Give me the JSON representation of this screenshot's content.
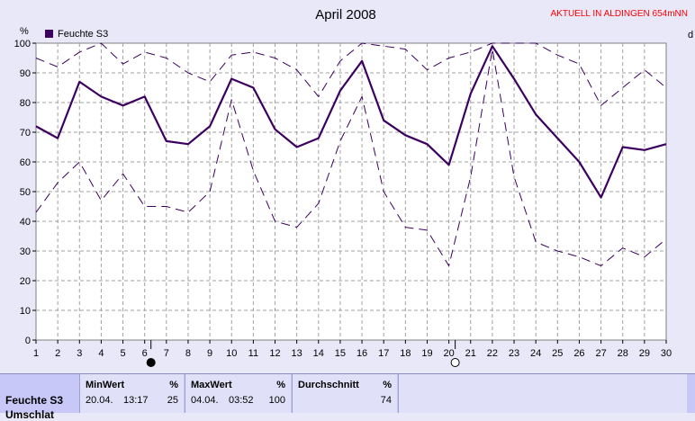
{
  "chart_data": {
    "type": "line",
    "title": "April 2008",
    "station_label": "AKTUELL IN ALDINGEN 654mNN",
    "ylabel": "%",
    "right_axis_label": "d",
    "legend": "Feuchte S3",
    "x": [
      1,
      2,
      3,
      4,
      5,
      6,
      7,
      8,
      9,
      10,
      11,
      12,
      13,
      14,
      15,
      16,
      17,
      18,
      19,
      20,
      21,
      22,
      23,
      24,
      25,
      26,
      27,
      28,
      29,
      30
    ],
    "xlim": [
      1,
      30
    ],
    "ylim": [
      0,
      100
    ],
    "yticks": [
      0,
      10,
      20,
      30,
      40,
      50,
      60,
      70,
      80,
      90,
      100
    ],
    "grid": true,
    "series": [
      {
        "name": "Feuchte S3",
        "style": "solid",
        "color": "#3c0060",
        "values": [
          72,
          68,
          87,
          82,
          79,
          82,
          67,
          66,
          72,
          88,
          85,
          71,
          65,
          68,
          84,
          94,
          74,
          69,
          66,
          59,
          83,
          99,
          88,
          76,
          68,
          60,
          48,
          65,
          64,
          66
        ]
      },
      {
        "style": "dashed-max",
        "color": "#3c0060",
        "values": [
          95,
          92,
          97,
          100,
          93,
          97,
          95,
          90,
          87,
          96,
          97,
          95,
          91,
          82,
          94,
          100,
          99,
          98,
          91,
          95,
          97,
          100,
          100,
          100,
          96,
          93,
          79,
          85,
          91,
          85
        ]
      },
      {
        "style": "dashed-min",
        "color": "#3c0060",
        "values": [
          43,
          53,
          60,
          47,
          56,
          45,
          45,
          43,
          50,
          81,
          57,
          40,
          38,
          46,
          67,
          82,
          50,
          38,
          37,
          25,
          55,
          98,
          55,
          33,
          30,
          28,
          25,
          31,
          28,
          34
        ]
      }
    ],
    "moon_markers": [
      {
        "day": 6,
        "phase": "new"
      },
      {
        "day": 20,
        "phase": "full"
      }
    ]
  },
  "stats": {
    "row_label": "Feuchte S3",
    "row_label_2": "Umschlat",
    "min": {
      "header": "MinWert",
      "unit": "%",
      "date": "20.04.",
      "time": "13:17",
      "value": "25"
    },
    "max": {
      "header": "MaxWert",
      "unit": "%",
      "date": "04.04.",
      "time": "03:52",
      "value": "100"
    },
    "avg": {
      "header": "Durchschnitt",
      "unit": "%",
      "value": "74"
    }
  }
}
